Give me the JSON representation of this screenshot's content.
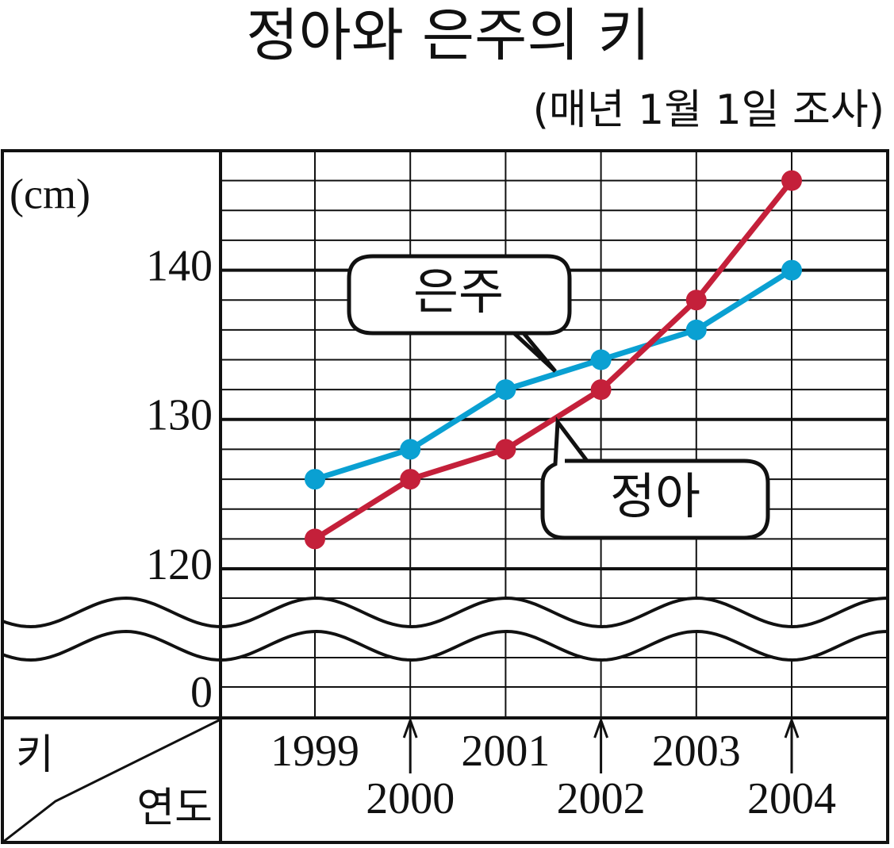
{
  "chart_data": {
    "type": "line",
    "title": "정아와 은주의 키",
    "subtitle": "(매년 1월 1일 조사)",
    "y_label": "(cm)",
    "corner_y_label": "키",
    "corner_x_label": "연도",
    "categories": [
      "1999",
      "2000",
      "2001",
      "2002",
      "2003",
      "2004"
    ],
    "series": [
      {
        "name": "은주",
        "color": "#0aa0d2",
        "values": [
          126,
          128,
          132,
          134,
          136,
          140
        ]
      },
      {
        "name": "정아",
        "color": "#c4203a",
        "values": [
          122,
          126,
          128,
          132,
          138,
          146
        ]
      }
    ],
    "ylim": [
      0,
      148
    ],
    "axis_break": [
      0,
      120
    ],
    "yticks": [
      0,
      120,
      130,
      140
    ],
    "grid": true
  }
}
